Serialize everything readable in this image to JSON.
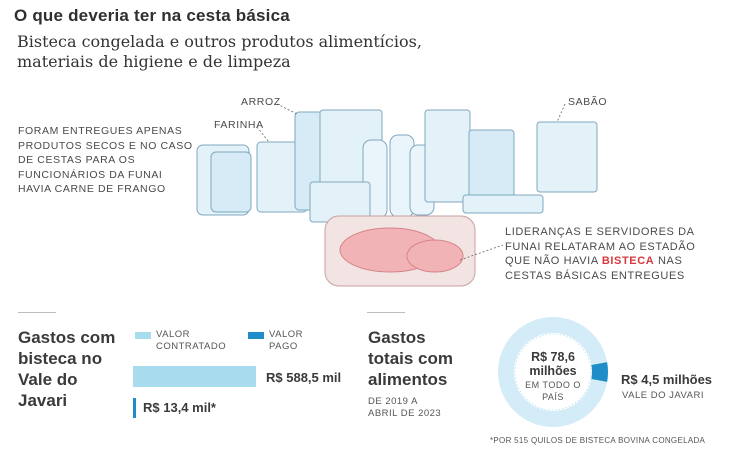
{
  "header": {
    "title": "O que deveria ter na cesta básica",
    "subtitle": "Bisteca congelada e outros produtos alimentícios, materiais de higiene e de limpeza"
  },
  "illustration": {
    "labels": {
      "arroz": "ARROZ",
      "farinha": "FARINHA",
      "sabao": "SABÃO"
    },
    "note_left": "FORAM ENTREGUES APENAS PRODUTOS SECOS E NO CASO DE CESTAS PARA OS FUNCIONÁRIOS DA FUNAI HAVIA CARNE DE FRANGO",
    "note_right_before": "LIDERANÇAS E SERVIDORES DA FUNAI RELATARAM AO ESTADÃO QUE NÃO HAVIA ",
    "note_right_highlight": "BISTECA",
    "note_right_after": " NAS CESTAS BÁSICAS ENTREGUES",
    "highlight_color": "#d5383f"
  },
  "colors": {
    "light_blue": "#a7dcef",
    "dark_blue": "#1f8ec8",
    "ring_light": "#d3ecf7"
  },
  "chart_data": [
    {
      "type": "bar",
      "title": "Gastos com bisteca no Vale do Javari",
      "categories": [
        "Valor contratado",
        "Valor pago"
      ],
      "values": [
        588.5,
        13.4
      ],
      "unit": "R$ mil",
      "value_labels": [
        "R$ 588,5 mil",
        "R$ 13,4 mil*"
      ],
      "legend": [
        "VALOR CONTRATADO",
        "VALOR PAGO"
      ]
    },
    {
      "type": "pie",
      "title": "Gastos totais com alimentos",
      "subtitle": "DE 2019 A ABRIL DE 2023",
      "slices": [
        {
          "name": "EM TODO O PAÍS",
          "value": 78.6
        },
        {
          "name": "VALE DO JAVARI",
          "value": 4.5
        }
      ],
      "unit": "R$ milhões",
      "total_label_value": "R$ 78,6 milhões",
      "total_label_text": "EM TODO O PAÍS",
      "part_label_value": "R$ 4,5 milhões",
      "part_label_text": "VALE DO JAVARI"
    }
  ],
  "footnote": "*POR 515 QUILOS DE BISTECA BOVINA CONGELADA"
}
